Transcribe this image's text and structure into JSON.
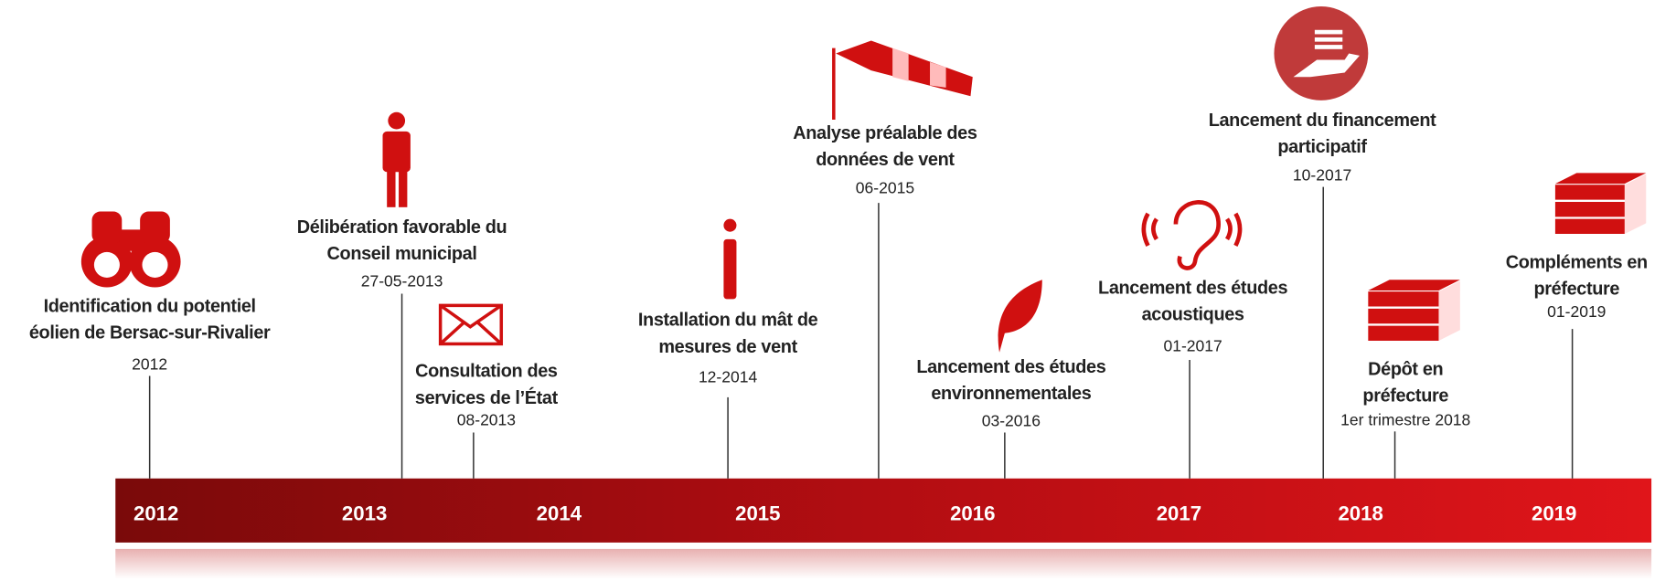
{
  "years": [
    "2012",
    "2013",
    "2014",
    "2015",
    "2016",
    "2017",
    "2018",
    "2019"
  ],
  "events": [
    {
      "title": [
        "Identification du potentiel",
        "éolien de Bersac-sur-Rivalier"
      ],
      "date": "2012"
    },
    {
      "title": [
        "Délibération favorable du",
        "Conseil municipal"
      ],
      "date": "27-05-2013"
    },
    {
      "title": [
        "Consultation des",
        "services de l’État"
      ],
      "date": "08-2013"
    },
    {
      "title": [
        "Installation du mât de",
        "mesures de vent"
      ],
      "date": "12-2014"
    },
    {
      "title": [
        "Analyse préalable des",
        "données de vent"
      ],
      "date": "06-2015"
    },
    {
      "title": [
        "Lancement des études",
        "environnementales"
      ],
      "date": "03-2016"
    },
    {
      "title": [
        "Lancement des études",
        "acoustiques"
      ],
      "date": "01-2017"
    },
    {
      "title": [
        "Lancement du financement",
        "participatif"
      ],
      "date": "10-2017"
    },
    {
      "title": [
        "Dépôt en",
        "préfecture"
      ],
      "date": "1er trimestre 2018"
    },
    {
      "title": [
        "Compléments en",
        "préfecture"
      ],
      "date": "01-2019"
    }
  ]
}
